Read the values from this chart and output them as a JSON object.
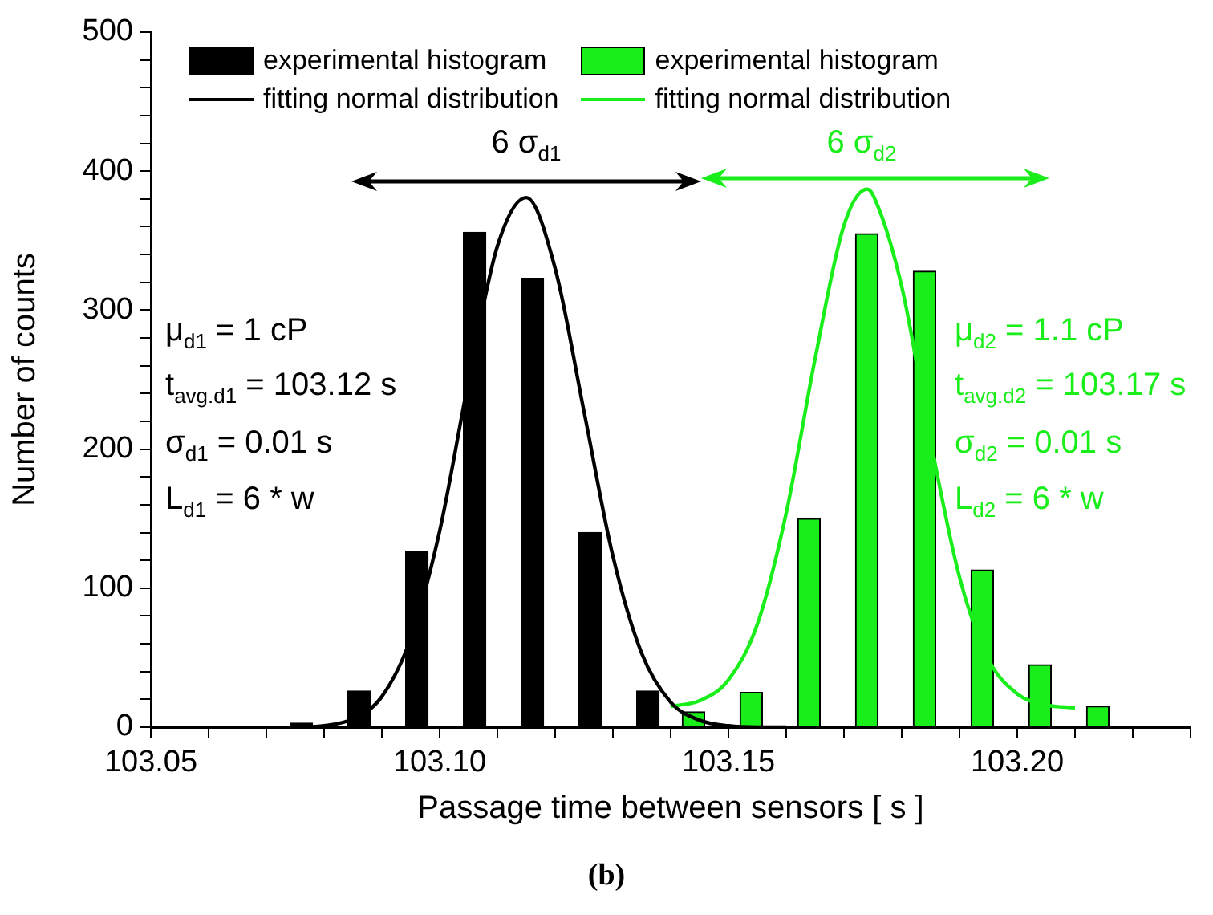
{
  "chart_data": {
    "type": "bar",
    "xlabel": "Passage time between sensors [ s ]",
    "ylabel": "Number of counts",
    "xlim": [
      103.05,
      103.23
    ],
    "xticks": [
      103.05,
      {
        "value": 103.06,
        "label": null
      },
      {
        "value": 103.07,
        "label": null
      },
      {
        "value": 103.08,
        "label": null
      },
      {
        "value": 103.09,
        "label": null
      },
      {
        "value": 103.1,
        "label": "103.10"
      },
      {
        "value": 103.11,
        "label": null
      },
      {
        "value": 103.12,
        "label": null
      },
      {
        "value": 103.13,
        "label": null
      },
      {
        "value": 103.14,
        "label": null
      },
      103.15,
      {
        "value": 103.16,
        "label": null
      },
      {
        "value": 103.17,
        "label": null
      },
      {
        "value": 103.18,
        "label": null
      },
      {
        "value": 103.19,
        "label": null
      },
      {
        "value": 103.2,
        "label": "103.20"
      },
      {
        "value": 103.21,
        "label": null
      },
      {
        "value": 103.22,
        "label": null
      },
      {
        "value": 103.23,
        "label": null
      }
    ],
    "ylim": [
      0,
      500
    ],
    "yticks": [
      0,
      {
        "value": 20,
        "label": null
      },
      {
        "value": 40,
        "label": null
      },
      {
        "value": 60,
        "label": null
      },
      {
        "value": 80,
        "label": null
      },
      100,
      {
        "value": 120,
        "label": null
      },
      {
        "value": 140,
        "label": null
      },
      {
        "value": 160,
        "label": null
      },
      {
        "value": 180,
        "label": null
      },
      200,
      {
        "value": 220,
        "label": null
      },
      {
        "value": 240,
        "label": null
      },
      {
        "value": 260,
        "label": null
      },
      {
        "value": 280,
        "label": null
      },
      300,
      {
        "value": 320,
        "label": null
      },
      {
        "value": 340,
        "label": null
      },
      {
        "value": 360,
        "label": null
      },
      {
        "value": 380,
        "label": null
      },
      400,
      {
        "value": 420,
        "label": null
      },
      {
        "value": 440,
        "label": null
      },
      {
        "value": 460,
        "label": null
      },
      {
        "value": 480,
        "label": null
      },
      500
    ],
    "grid": false,
    "legend": "top",
    "marker": "none",
    "line_style": "solid",
    "series": [
      {
        "name": "experimental histogram",
        "color": "#000000",
        "x": [
          103.078,
          103.088,
          103.098,
          103.108,
          103.118,
          103.128,
          103.138
        ],
        "values": [
          3,
          26,
          126,
          356,
          323,
          140,
          26
        ]
      },
      {
        "name": "fitting normal distribution",
        "type": "line",
        "color": "#000000",
        "x": [
          103.075,
          103.08,
          103.085,
          103.09,
          103.095,
          103.1,
          103.105,
          103.11,
          103.115,
          103.12,
          103.125,
          103.13,
          103.135,
          103.14,
          103.145,
          103.15,
          103.155,
          103.16
        ],
        "values": [
          0,
          1,
          6,
          22,
          64,
          141,
          249,
          346,
          381,
          330,
          227,
          123,
          53,
          18,
          5,
          1,
          0,
          0
        ]
      },
      {
        "name": "experimental histogram",
        "color": "#1aee1a",
        "x": [
          103.142,
          103.152,
          103.162,
          103.172,
          103.182,
          103.192,
          103.202,
          103.212
        ],
        "values": [
          11,
          25,
          150,
          355,
          328,
          113,
          45,
          15
        ]
      },
      {
        "name": "fitting normal distribution",
        "type": "line",
        "color": "#1aee1a",
        "x": [
          103.14,
          103.145,
          103.15,
          103.155,
          103.16,
          103.165,
          103.17,
          103.174,
          103.175,
          103.18,
          103.185,
          103.19,
          103.195,
          103.2,
          103.205,
          103.21
        ],
        "values": [
          15,
          19,
          34,
          74,
          154,
          265,
          361,
          387,
          383,
          317,
          206,
          108,
          49,
          24,
          16,
          14
        ]
      }
    ],
    "annotations": [
      "μ$_{d1}$ = 1 cP",
      "t$_{avg.d1}$ = 103.12 s",
      "σ$_{d1}$ = 0.01 s",
      "L$_{d1}$ = 6 * w",
      "μ$_{d2}$ = 1.1 cP",
      "t$_{avg.d2}$ = 103.17 s",
      "σ$_{d2}$ = 0.01 s",
      "L$_{d2}$ = 6 * w",
      "6 σ$_{d1}$",
      "6 σ$_{d2}$",
      "(b)"
    ]
  }
}
